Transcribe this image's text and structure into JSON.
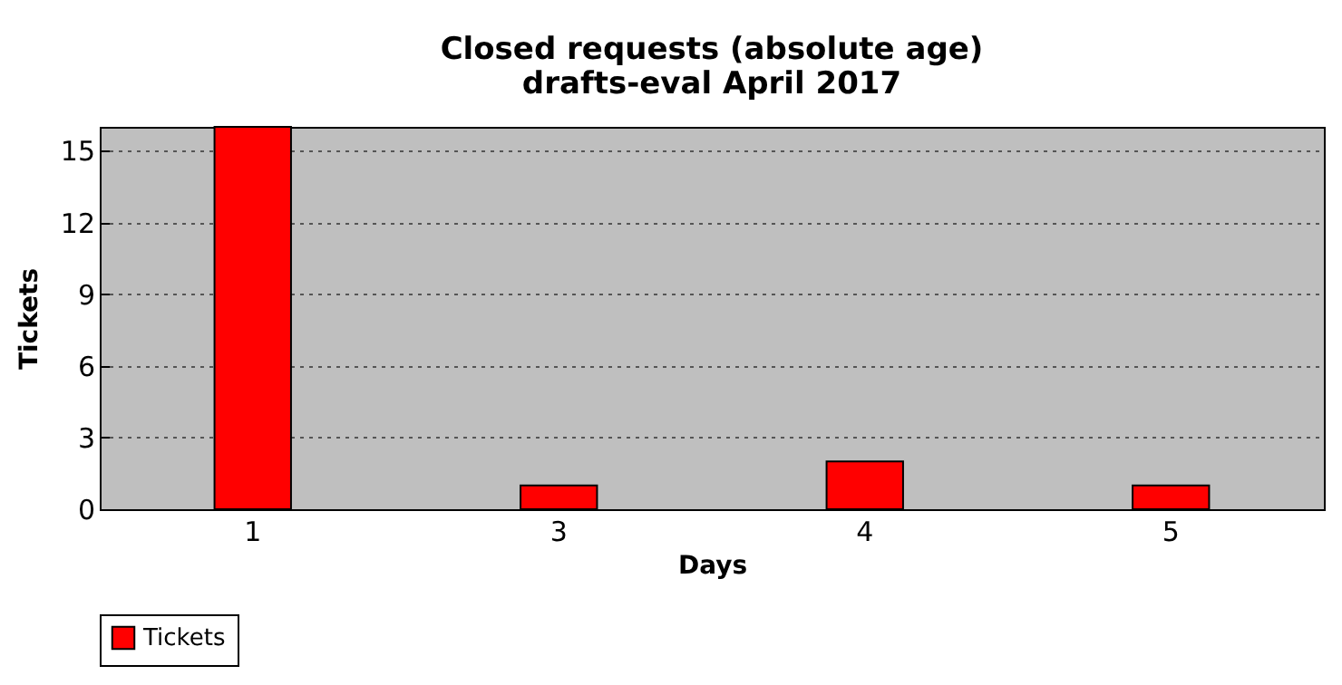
{
  "chart_data": {
    "type": "bar",
    "title": "Closed requests (absolute age)",
    "subtitle": "drafts-eval April 2017",
    "xlabel": "Days",
    "ylabel": "Tickets",
    "categories": [
      "1",
      "3",
      "4",
      "5"
    ],
    "series": [
      {
        "name": "Tickets",
        "color": "#ff0000",
        "values": [
          16,
          1,
          2,
          1
        ]
      }
    ],
    "ylim": [
      0,
      16
    ],
    "yticks": [
      0,
      3,
      6,
      9,
      12,
      15
    ],
    "grid": "y",
    "legend": "bottom"
  }
}
